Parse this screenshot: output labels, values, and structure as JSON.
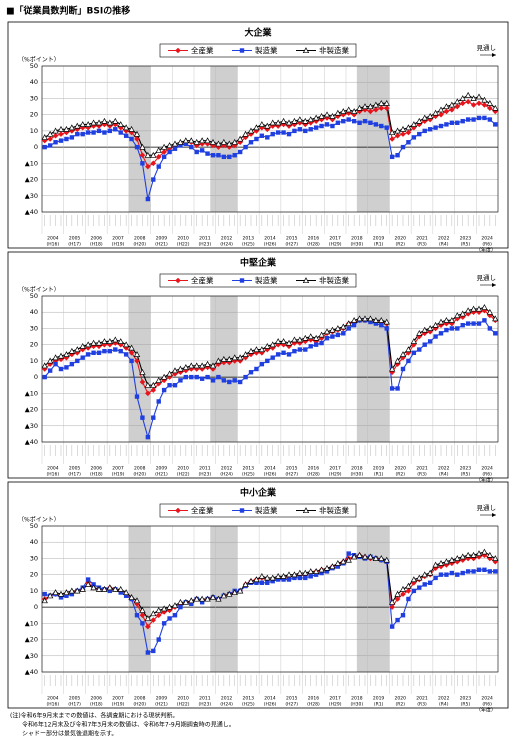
{
  "title": "■「従業員数判断」BSIの推移",
  "notes": [
    "(注)令和6年9月末までの数値は、各調査期における現状判断。",
    "令和6年12月末及び令和7年3月末の数値は、令和6年7-9月期調査時の見通し。",
    "シャドー部分は景気後退期を示す。"
  ],
  "recession_periods": [
    [
      16,
      19
    ],
    [
      31,
      35
    ],
    [
      58,
      63
    ]
  ],
  "chart_data": [
    {
      "type": "line",
      "title": "大企業",
      "y_label": "（%ポイント）",
      "forecast_label": "見通し",
      "x_label": "（年度）",
      "years": [
        "2004",
        "2005",
        "2006",
        "2007",
        "2008",
        "2009",
        "2010",
        "2011",
        "2012",
        "2013",
        "2014",
        "2015",
        "2016",
        "2017",
        "2018",
        "2019",
        "2020",
        "2021",
        "2022",
        "2023",
        "2024"
      ],
      "eras": [
        "(H16)",
        "(H17)",
        "(H18)",
        "(H19)",
        "(H20)",
        "(H21)",
        "(H22)",
        "(H23)",
        "(H24)",
        "(H25)",
        "(H26)",
        "(H27)",
        "(H28)",
        "(H29)",
        "(H30)",
        "(R1)",
        "(R2)",
        "(R3)",
        "(R4)",
        "(R5)",
        "(R6)"
      ],
      "ylim": [
        -40,
        50
      ],
      "yticks": [
        50,
        40,
        30,
        20,
        10,
        0,
        {
          "value": -10,
          "label": "▲10"
        },
        {
          "value": -20,
          "label": "▲20"
        },
        {
          "value": -30,
          "label": "▲30"
        },
        {
          "value": -40,
          "label": "▲40"
        }
      ],
      "series": [
        {
          "name": "全産業",
          "color": "#e8141c",
          "marker": "diamond",
          "values": [
            4,
            5,
            7,
            8,
            9,
            10,
            11,
            12,
            12,
            13,
            13,
            14,
            13,
            14,
            12,
            10,
            9,
            5,
            -5,
            -12,
            -10,
            -6,
            -3,
            -1,
            1,
            2,
            3,
            3,
            1,
            2,
            2,
            1,
            0,
            1,
            0,
            1,
            3,
            6,
            8,
            10,
            12,
            11,
            13,
            13,
            14,
            13,
            14,
            15,
            14,
            15,
            16,
            17,
            18,
            17,
            19,
            20,
            21,
            20,
            22,
            23,
            22,
            23,
            24,
            24,
            5,
            7,
            8,
            9,
            12,
            14,
            16,
            17,
            19,
            20,
            22,
            23,
            25,
            27,
            28,
            26,
            27,
            26,
            24,
            22
          ]
        },
        {
          "name": "製造業",
          "color": "#1f3fe0",
          "marker": "square",
          "values": [
            0,
            1,
            3,
            4,
            5,
            6,
            8,
            8,
            9,
            9,
            10,
            9,
            10,
            11,
            9,
            7,
            5,
            0,
            -10,
            -32,
            -20,
            -12,
            -6,
            -3,
            -1,
            1,
            2,
            0,
            -3,
            -2,
            -4,
            -5,
            -5,
            -6,
            -6,
            -5,
            -3,
            0,
            3,
            5,
            7,
            6,
            8,
            9,
            9,
            8,
            10,
            11,
            10,
            11,
            12,
            13,
            14,
            13,
            15,
            16,
            17,
            16,
            15,
            16,
            15,
            14,
            13,
            12,
            -6,
            -5,
            0,
            3,
            6,
            8,
            10,
            11,
            12,
            13,
            14,
            15,
            15,
            16,
            17,
            17,
            18,
            18,
            17,
            14
          ]
        },
        {
          "name": "非製造業",
          "color": "#000000",
          "marker": "triangle",
          "values": [
            6,
            8,
            10,
            11,
            11,
            12,
            13,
            14,
            14,
            15,
            15,
            16,
            15,
            16,
            14,
            12,
            11,
            8,
            0,
            -5,
            -5,
            -2,
            0,
            1,
            2,
            3,
            4,
            4,
            3,
            4,
            4,
            3,
            2,
            3,
            2,
            3,
            5,
            8,
            10,
            12,
            14,
            13,
            15,
            15,
            16,
            15,
            16,
            17,
            16,
            17,
            18,
            19,
            20,
            19,
            21,
            22,
            23,
            22,
            24,
            25,
            25,
            26,
            27,
            27,
            9,
            10,
            11,
            12,
            14,
            16,
            18,
            19,
            21,
            23,
            25,
            26,
            28,
            30,
            32,
            30,
            31,
            29,
            27,
            24
          ]
        }
      ]
    },
    {
      "type": "line",
      "title": "中堅企業",
      "y_label": "（%ポイント）",
      "forecast_label": "見通し",
      "x_label": "（年度）",
      "years": [
        "2004",
        "2005",
        "2006",
        "2007",
        "2008",
        "2009",
        "2010",
        "2011",
        "2012",
        "2013",
        "2014",
        "2015",
        "2016",
        "2017",
        "2018",
        "2019",
        "2020",
        "2021",
        "2022",
        "2023",
        "2024"
      ],
      "eras": [
        "(H16)",
        "(H17)",
        "(H18)",
        "(H19)",
        "(H20)",
        "(H21)",
        "(H22)",
        "(H23)",
        "(H24)",
        "(H25)",
        "(H26)",
        "(H27)",
        "(H28)",
        "(H29)",
        "(H30)",
        "(R1)",
        "(R2)",
        "(R3)",
        "(R4)",
        "(R5)",
        "(R6)"
      ],
      "ylim": [
        -40,
        50
      ],
      "yticks": [
        50,
        40,
        30,
        20,
        10,
        0,
        {
          "value": -10,
          "label": "▲10"
        },
        {
          "value": -20,
          "label": "▲20"
        },
        {
          "value": -30,
          "label": "▲30"
        },
        {
          "value": -40,
          "label": "▲40"
        }
      ],
      "series": [
        {
          "name": "全産業",
          "color": "#e8141c",
          "marker": "diamond",
          "values": [
            5,
            8,
            10,
            11,
            12,
            14,
            15,
            17,
            18,
            19,
            19,
            20,
            20,
            21,
            20,
            18,
            15,
            10,
            -3,
            -10,
            -8,
            -4,
            -2,
            0,
            2,
            3,
            4,
            5,
            5,
            5,
            6,
            5,
            8,
            9,
            9,
            10,
            10,
            12,
            14,
            15,
            15,
            17,
            18,
            20,
            20,
            19,
            21,
            21,
            22,
            23,
            22,
            24,
            27,
            28,
            29,
            30,
            33,
            34,
            35,
            35,
            35,
            34,
            34,
            33,
            3,
            8,
            12,
            15,
            20,
            25,
            27,
            28,
            30,
            32,
            33,
            33,
            36,
            37,
            39,
            40,
            40,
            41,
            38,
            35
          ]
        },
        {
          "name": "製造業",
          "color": "#1f3fe0",
          "marker": "square",
          "values": [
            0,
            4,
            8,
            5,
            6,
            8,
            10,
            12,
            14,
            15,
            15,
            16,
            16,
            17,
            16,
            14,
            10,
            -12,
            -25,
            -37,
            -25,
            -15,
            -8,
            -5,
            -5,
            -2,
            0,
            0,
            0,
            -1,
            0,
            -2,
            0,
            -2,
            -3,
            -2,
            -3,
            0,
            3,
            5,
            8,
            10,
            12,
            14,
            15,
            14,
            16,
            17,
            17,
            19,
            20,
            21,
            24,
            25,
            26,
            27,
            30,
            32,
            35,
            35,
            34,
            33,
            32,
            30,
            -7,
            -7,
            5,
            10,
            15,
            17,
            20,
            22,
            25,
            27,
            29,
            30,
            30,
            32,
            33,
            33,
            33,
            35,
            30,
            27
          ]
        },
        {
          "name": "非製造業",
          "color": "#000000",
          "marker": "triangle",
          "values": [
            7,
            10,
            12,
            13,
            14,
            16,
            17,
            19,
            20,
            21,
            21,
            22,
            22,
            23,
            22,
            20,
            18,
            14,
            3,
            -5,
            -5,
            -2,
            0,
            2,
            4,
            5,
            6,
            7,
            7,
            7,
            8,
            7,
            10,
            11,
            11,
            12,
            12,
            14,
            16,
            17,
            17,
            19,
            20,
            22,
            22,
            21,
            23,
            23,
            24,
            25,
            24,
            26,
            28,
            29,
            30,
            31,
            33,
            35,
            36,
            36,
            36,
            35,
            35,
            34,
            5,
            10,
            14,
            17,
            22,
            27,
            29,
            30,
            32,
            34,
            35,
            35,
            38,
            39,
            41,
            42,
            42,
            43,
            40,
            36
          ]
        }
      ]
    },
    {
      "type": "line",
      "title": "中小企業",
      "y_label": "（%ポイント）",
      "forecast_label": "見通し",
      "x_label": "（年度）",
      "years": [
        "2004",
        "2005",
        "2006",
        "2007",
        "2008",
        "2009",
        "2010",
        "2011",
        "2012",
        "2013",
        "2014",
        "2015",
        "2016",
        "2017",
        "2018",
        "2019",
        "2020",
        "2021",
        "2022",
        "2023",
        "2024"
      ],
      "eras": [
        "(H16)",
        "(H17)",
        "(H18)",
        "(H19)",
        "(H20)",
        "(H21)",
        "(H22)",
        "(H23)",
        "(H24)",
        "(H25)",
        "(H26)",
        "(H27)",
        "(H28)",
        "(H29)",
        "(H30)",
        "(R1)",
        "(R2)",
        "(R3)",
        "(R4)",
        "(R5)",
        "(R6)"
      ],
      "ylim": [
        -40,
        50
      ],
      "yticks": [
        50,
        40,
        30,
        20,
        10,
        0,
        {
          "value": -10,
          "label": "▲10"
        },
        {
          "value": -20,
          "label": "▲20"
        },
        {
          "value": -30,
          "label": "▲30"
        },
        {
          "value": -40,
          "label": "▲40"
        }
      ],
      "series": [
        {
          "name": "全産業",
          "color": "#e8141c",
          "marker": "diamond",
          "values": [
            5,
            7,
            8,
            7,
            8,
            9,
            10,
            11,
            15,
            12,
            11,
            11,
            12,
            11,
            10,
            8,
            5,
            2,
            -5,
            -12,
            -8,
            -5,
            -3,
            -2,
            0,
            2,
            3,
            3,
            5,
            4,
            5,
            6,
            5,
            7,
            8,
            9,
            10,
            14,
            16,
            17,
            18,
            17,
            17,
            18,
            18,
            19,
            19,
            20,
            20,
            21,
            22,
            23,
            23,
            25,
            26,
            28,
            30,
            31,
            32,
            31,
            30,
            30,
            29,
            28,
            0,
            5,
            8,
            10,
            15,
            17,
            19,
            20,
            24,
            25,
            26,
            27,
            28,
            29,
            30,
            30,
            31,
            32,
            30,
            28
          ]
        },
        {
          "name": "製造業",
          "color": "#1f3fe0",
          "marker": "square",
          "values": [
            8,
            7,
            8,
            6,
            7,
            8,
            10,
            12,
            17,
            14,
            12,
            11,
            10,
            11,
            9,
            7,
            5,
            -5,
            -10,
            -28,
            -27,
            -20,
            -10,
            -7,
            -5,
            0,
            3,
            2,
            5,
            3,
            5,
            6,
            5,
            7,
            8,
            10,
            10,
            13,
            15,
            15,
            15,
            15,
            16,
            17,
            17,
            17,
            18,
            18,
            18,
            19,
            20,
            21,
            22,
            24,
            25,
            27,
            33,
            32,
            31,
            30,
            31,
            30,
            29,
            28,
            -12,
            -8,
            -5,
            5,
            10,
            12,
            14,
            15,
            18,
            20,
            20,
            21,
            20,
            21,
            22,
            22,
            23,
            23,
            22,
            22
          ]
        },
        {
          "name": "非製造業",
          "color": "#000000",
          "marker": "triangle",
          "values": [
            4,
            7,
            9,
            8,
            9,
            10,
            10,
            11,
            14,
            12,
            11,
            11,
            12,
            11,
            11,
            9,
            6,
            4,
            -2,
            -7,
            -4,
            -2,
            -1,
            0,
            1,
            3,
            3,
            4,
            5,
            5,
            5,
            6,
            5,
            7,
            8,
            9,
            10,
            14,
            16,
            17,
            19,
            18,
            18,
            19,
            19,
            20,
            20,
            21,
            21,
            22,
            22,
            23,
            24,
            25,
            27,
            28,
            29,
            31,
            32,
            31,
            31,
            30,
            30,
            29,
            3,
            8,
            11,
            13,
            17,
            18,
            20,
            21,
            26,
            27,
            28,
            29,
            30,
            31,
            32,
            32,
            33,
            34,
            32,
            30
          ]
        }
      ]
    }
  ]
}
